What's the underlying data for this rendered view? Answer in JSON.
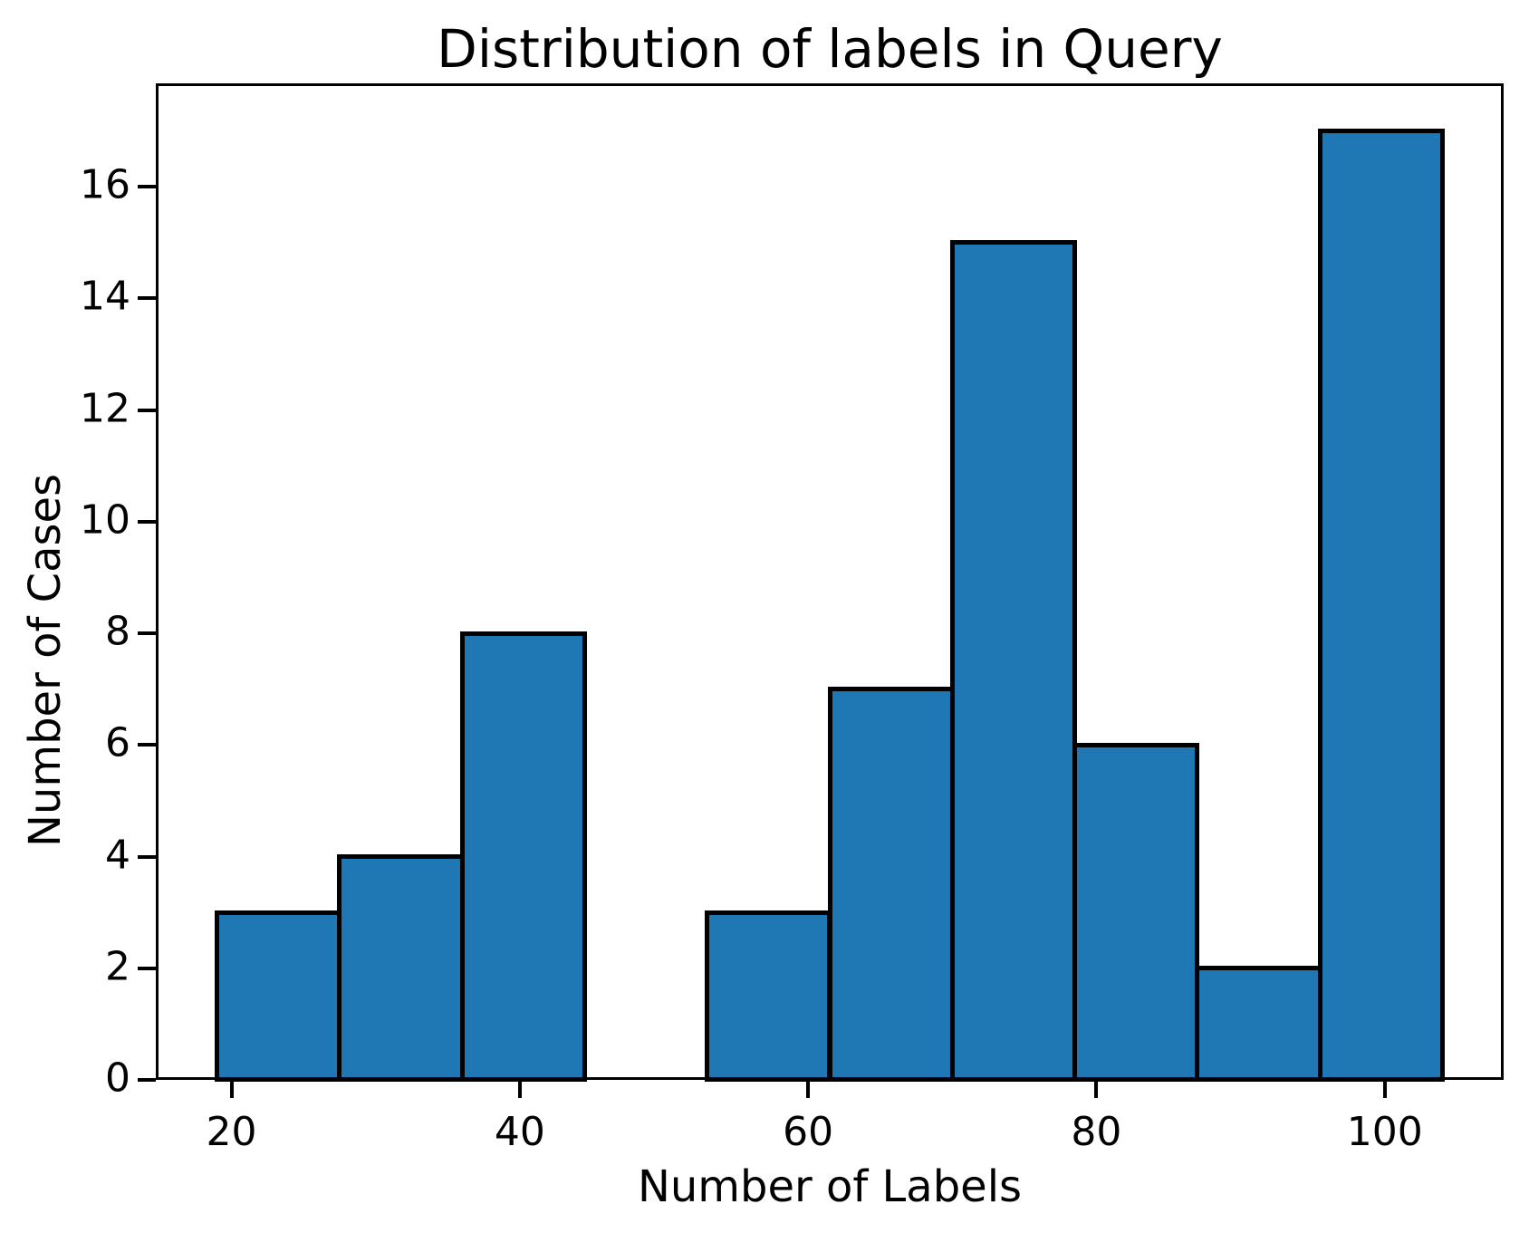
{
  "figure": {
    "background": "#ffffff",
    "text_color": "#000000"
  },
  "chart_data": {
    "type": "bar",
    "subtype": "histogram",
    "title": "Distribution of labels in Query",
    "xlabel": "Number of Labels",
    "ylabel": "Number of Cases",
    "bar_color": "#1f77b4",
    "bar_edge_color": "#000000",
    "bin_edges": [
      19,
      27.5,
      36,
      44.5,
      53,
      61.5,
      70,
      78.5,
      87,
      95.5,
      104
    ],
    "counts": [
      3,
      4,
      8,
      0,
      3,
      7,
      15,
      6,
      2,
      17
    ],
    "xlim": [
      14.75,
      108.25
    ],
    "ylim": [
      0,
      17.85
    ],
    "x_ticks": [
      20,
      40,
      60,
      80,
      100
    ],
    "y_ticks": [
      0,
      2,
      4,
      6,
      8,
      10,
      12,
      14,
      16
    ],
    "grid": false,
    "legend_position": "none"
  }
}
